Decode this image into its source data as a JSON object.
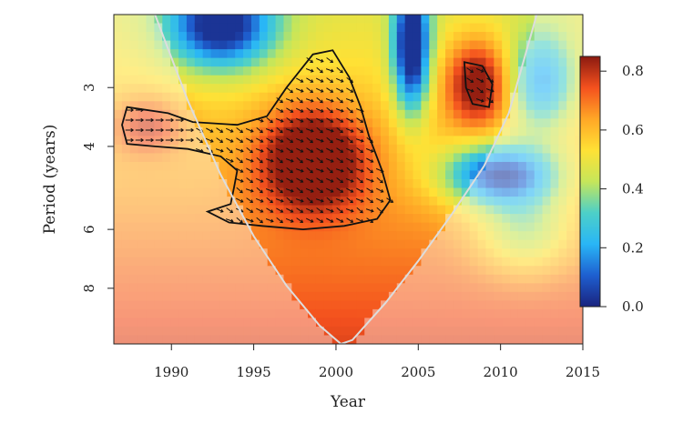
{
  "chart_data": {
    "type": "heatmap",
    "subtype": "wavelet-coherence",
    "title": "",
    "xlabel": "Year",
    "ylabel": "Period (years)",
    "xlim": [
      1986.5,
      2015
    ],
    "ylim_period": [
      2.1,
      10.5
    ],
    "y_scale": "log2",
    "grid": false,
    "x_ticks": [
      "1990",
      "1995",
      "2000",
      "2005",
      "2010",
      "2015"
    ],
    "y_ticks": [
      "3",
      "4",
      "6",
      "8"
    ],
    "colorbar": {
      "min": 0.0,
      "max": 0.85,
      "ticks": [
        "0.0",
        "0.2",
        "0.4",
        "0.6",
        "0.8"
      ],
      "colors": [
        "#1a237e",
        "#1e5fd0",
        "#29b6f6",
        "#4dd0c8",
        "#c6e65a",
        "#ffe135",
        "#ffa726",
        "#f4511e",
        "#8b1a10"
      ]
    },
    "cone_of_influence": {
      "color": "#dddddd",
      "points": [
        [
          1989.0,
          2.1
        ],
        [
          1991,
          3.2
        ],
        [
          1993,
          4.6
        ],
        [
          1995,
          6.2
        ],
        [
          1997,
          7.9
        ],
        [
          1999,
          9.6
        ],
        [
          2000.3,
          10.5
        ],
        [
          2001,
          10.3
        ],
        [
          2003,
          8.6
        ],
        [
          2005,
          7.0
        ],
        [
          2007,
          5.6
        ],
        [
          2009,
          4.4
        ],
        [
          2010.5,
          3.4
        ],
        [
          2012.2,
          2.1
        ]
      ]
    },
    "significant_regions": [
      {
        "name": "",
        "points": [
          [
            1987.3,
            3.3
          ],
          [
            1989.8,
            3.4
          ],
          [
            1991.3,
            3.55
          ],
          [
            1994.0,
            3.6
          ],
          [
            1995.8,
            3.45
          ],
          [
            1997.0,
            3.0
          ],
          [
            1998.6,
            2.55
          ],
          [
            1999.8,
            2.5
          ],
          [
            2000.8,
            2.85
          ],
          [
            2001.5,
            3.3
          ],
          [
            2002.0,
            3.8
          ],
          [
            2002.8,
            4.5
          ],
          [
            2003.3,
            5.2
          ],
          [
            2002.5,
            5.7
          ],
          [
            2000.5,
            5.9
          ],
          [
            1998.0,
            6.0
          ],
          [
            1995.5,
            5.9
          ],
          [
            1993.5,
            5.8
          ],
          [
            1992.2,
            5.5
          ],
          [
            1993.6,
            5.3
          ],
          [
            1993.8,
            4.9
          ],
          [
            1994.0,
            4.5
          ],
          [
            1993.0,
            4.2
          ],
          [
            1991.0,
            4.05
          ],
          [
            1989.0,
            4.0
          ],
          [
            1987.3,
            3.95
          ],
          [
            1987.0,
            3.6
          ]
        ]
      },
      {
        "name": "",
        "points": [
          [
            2007.8,
            2.65
          ],
          [
            2008.9,
            2.7
          ],
          [
            2009.5,
            2.95
          ],
          [
            2009.3,
            3.3
          ],
          [
            2008.3,
            3.25
          ],
          [
            2007.9,
            3.0
          ]
        ]
      }
    ],
    "phase_arrows": "mostly pointing right and down-right (in-phase, slight lag)"
  }
}
